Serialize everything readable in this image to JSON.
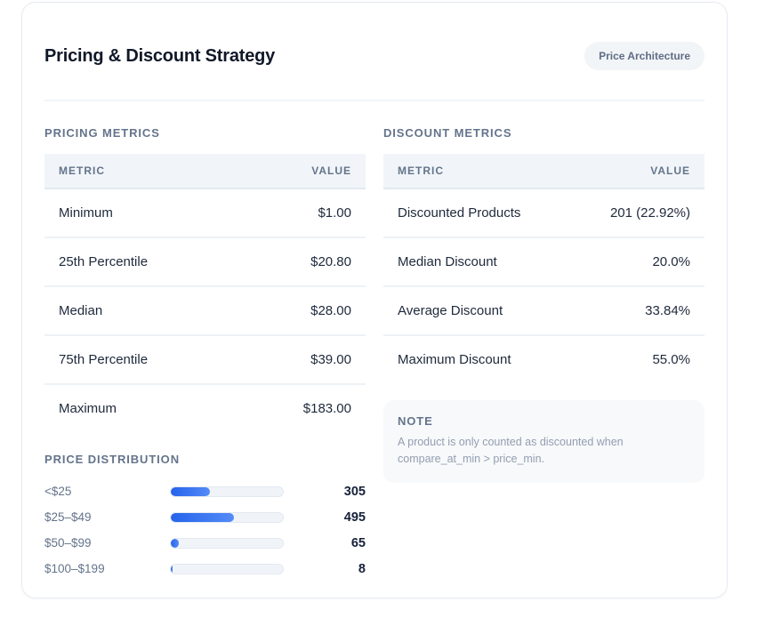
{
  "header": {
    "title": "Pricing & Discount Strategy",
    "badge": "Price Architecture"
  },
  "pricing_metrics": {
    "section_title": "PRICING METRICS",
    "columns": [
      "METRIC",
      "VALUE"
    ],
    "rows": [
      {
        "metric": "Minimum",
        "value": "$1.00"
      },
      {
        "metric": "25th Percentile",
        "value": "$20.80"
      },
      {
        "metric": "Median",
        "value": "$28.00"
      },
      {
        "metric": "75th Percentile",
        "value": "$39.00"
      },
      {
        "metric": "Maximum",
        "value": "$183.00"
      }
    ]
  },
  "discount_metrics": {
    "section_title": "DISCOUNT METRICS",
    "columns": [
      "METRIC",
      "VALUE"
    ],
    "rows": [
      {
        "metric": "Discounted Products",
        "value": "201 (22.92%)"
      },
      {
        "metric": "Median Discount",
        "value": "20.0%"
      },
      {
        "metric": "Average Discount",
        "value": "33.84%"
      },
      {
        "metric": "Maximum Discount",
        "value": "55.0%"
      }
    ]
  },
  "price_distribution": {
    "section_title": "PRICE DISTRIBUTION",
    "chart_data": {
      "type": "bar",
      "categories": [
        "<$25",
        "$25–$49",
        "$50–$99",
        "$100–$199"
      ],
      "values": [
        305,
        495,
        65,
        8
      ],
      "title": "PRICE DISTRIBUTION",
      "value_labels": [
        "305",
        "495",
        "65",
        "8"
      ],
      "normalization": "percent-of-total",
      "legend": false,
      "grid": false
    }
  },
  "note": {
    "title": "NOTE",
    "body": "A product is only counted as discounted when compare_at_min > price_min."
  },
  "colors": {
    "bar_fill_start": "#2563eb",
    "bar_fill_end": "#548bf7",
    "bar_track": "#f0f4f9",
    "section_label": "#64748b",
    "title_text": "#101828",
    "badge_bg": "#f2f5f8",
    "badge_text": "#5f6c85",
    "table_header_bg": "#f1f5f9",
    "note_bg": "#f7f9fb"
  }
}
